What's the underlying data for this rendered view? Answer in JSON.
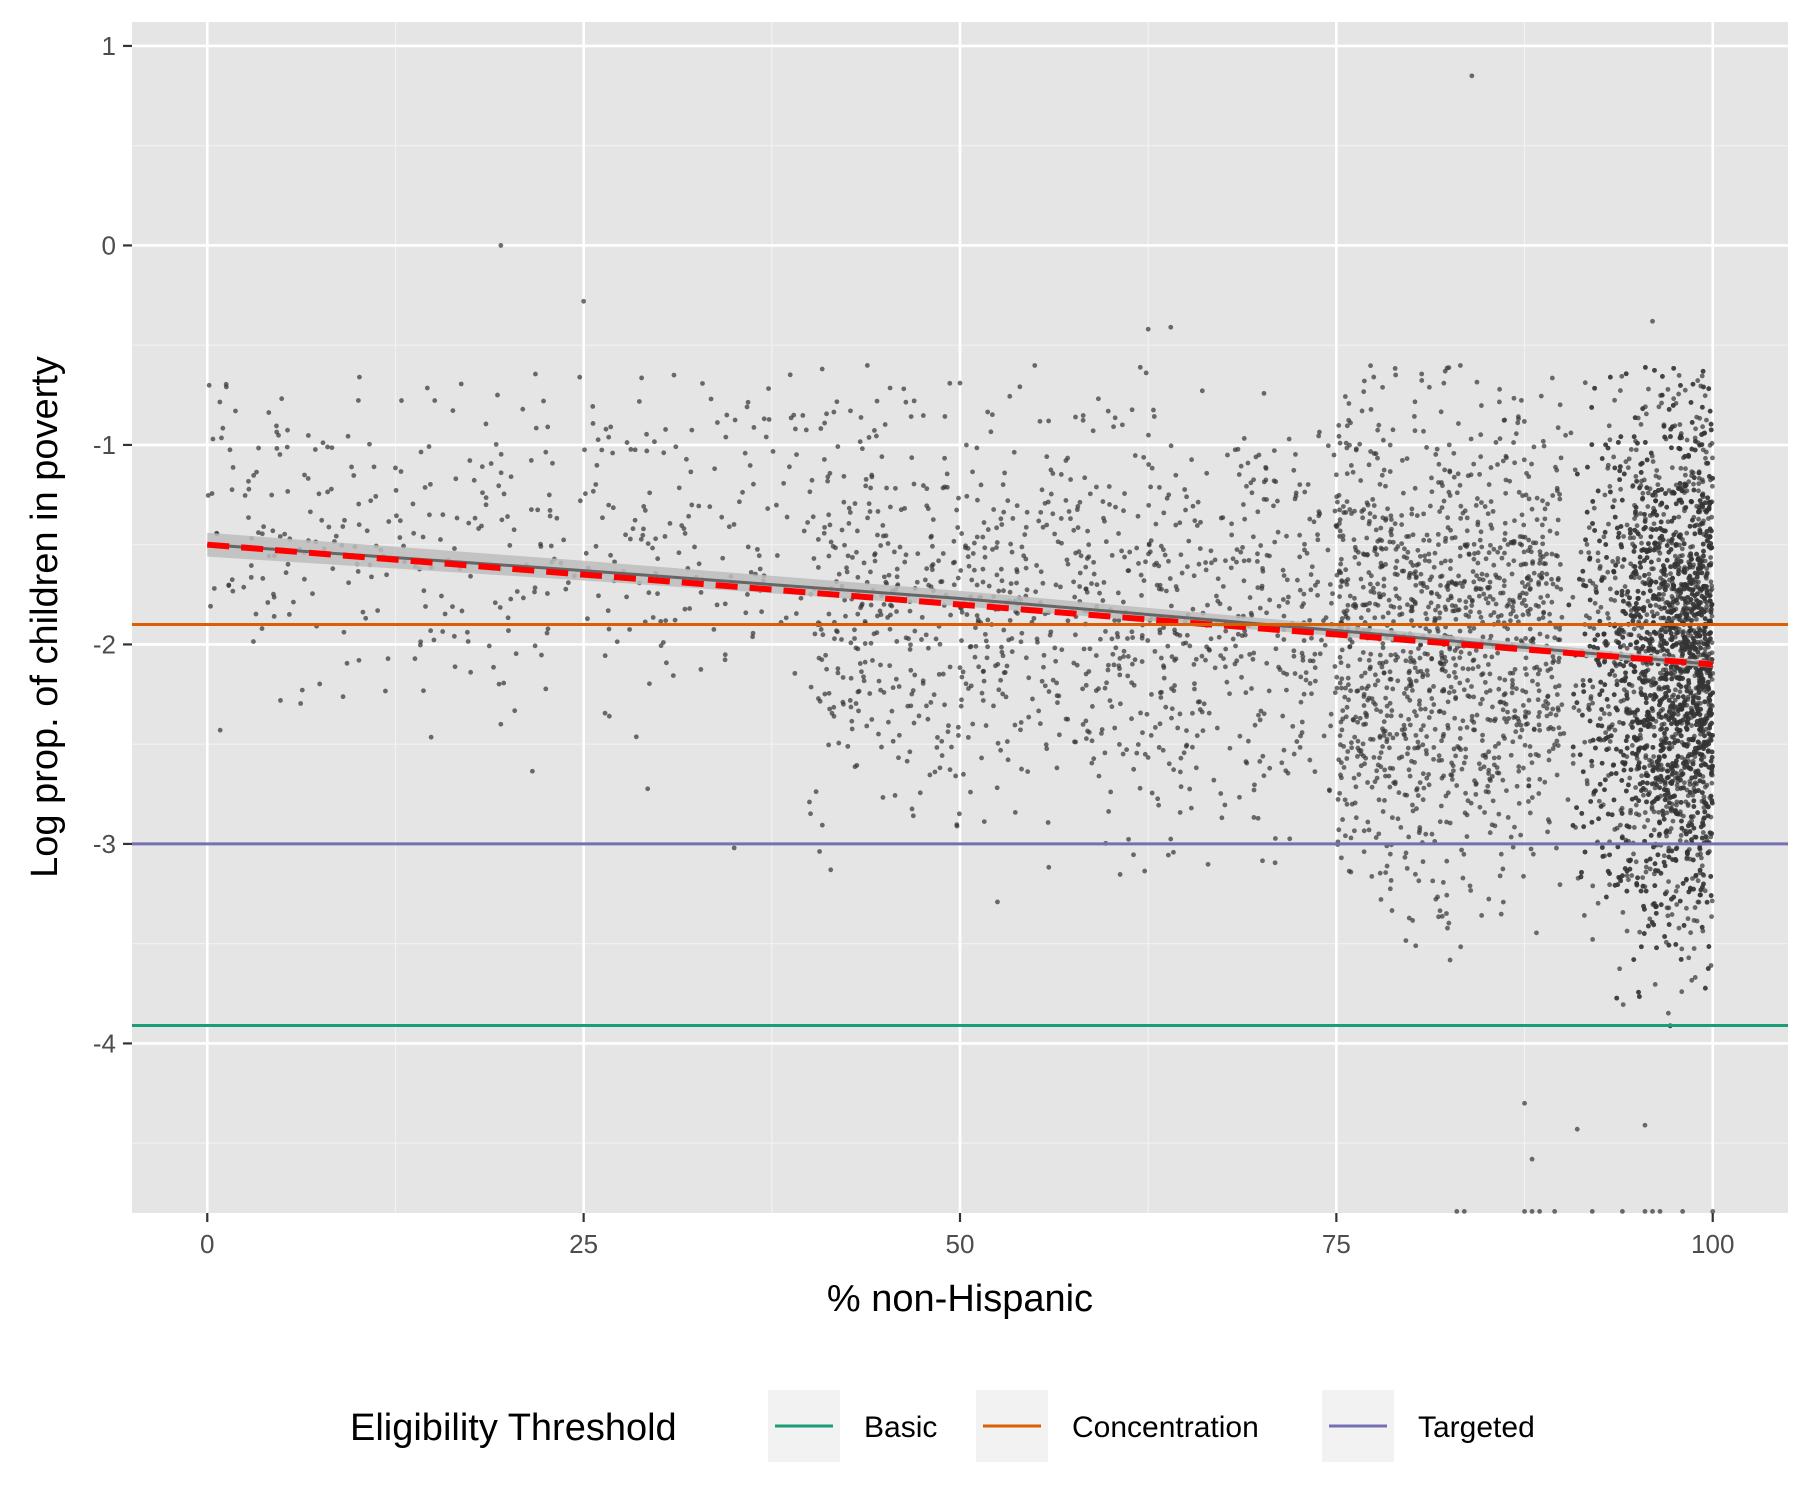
{
  "chart_data": {
    "type": "scatter",
    "title": "",
    "xlabel": "% non-Hispanic",
    "ylabel": "Log prop. of children in poverty",
    "xlim": [
      -5,
      105
    ],
    "ylim": [
      -4.85,
      1.12
    ],
    "x_ticks": [
      0,
      25,
      50,
      75,
      100
    ],
    "x_tick_labels": [
      "0",
      "25",
      "50",
      "75",
      "100"
    ],
    "y_ticks": [
      -4,
      -3,
      -2,
      -1,
      0,
      1
    ],
    "y_tick_labels": [
      "-4",
      "-3",
      "-2",
      "-1",
      "0",
      "1"
    ],
    "grid": true,
    "background": "#E5E5E5",
    "point_color": "#333333",
    "notable_points": [
      {
        "x": 84,
        "y": 0.85
      },
      {
        "x": 19.5,
        "y": 0.0
      },
      {
        "x": 25,
        "y": -0.28
      },
      {
        "x": 62.5,
        "y": -0.42
      },
      {
        "x": 64,
        "y": -0.41
      },
      {
        "x": 96,
        "y": -0.38
      },
      {
        "x": 50,
        "y": -0.69
      },
      {
        "x": 31,
        "y": -0.65
      },
      {
        "x": 88,
        "y": -4.58
      },
      {
        "x": 91,
        "y": -4.43
      },
      {
        "x": 95.5,
        "y": -4.41
      },
      {
        "x": 87.5,
        "y": -4.3
      },
      {
        "x": 35,
        "y": -3.02
      },
      {
        "x": 19.5,
        "y": -2.4
      },
      {
        "x": 40,
        "y": -2.79
      }
    ],
    "point_clusters": [
      {
        "x_range": [
          0,
          40
        ],
        "y_center": -1.45,
        "y_spread": 0.4,
        "count": 420
      },
      {
        "x_range": [
          40,
          75
        ],
        "y_center": -1.85,
        "y_spread": 0.5,
        "count": 1100
      },
      {
        "x_range": [
          75,
          90
        ],
        "y_center": -2.0,
        "y_spread": 0.6,
        "count": 1300
      },
      {
        "x_range": [
          90,
          100
        ],
        "y_center": -2.1,
        "y_spread": 0.65,
        "count": 3200
      }
    ],
    "bottom_clipped_x": [
      83,
      83.5,
      87.5,
      88,
      88.5,
      89.5,
      92,
      94,
      95.5,
      96,
      96.5,
      98,
      100
    ],
    "trend_loess": {
      "x": [
        0,
        25,
        50,
        75,
        100
      ],
      "y": [
        -1.5,
        -1.63,
        -1.77,
        -1.93,
        -2.1
      ],
      "color": "#666666"
    },
    "trend_linear": {
      "x": [
        0,
        100
      ],
      "y": [
        -1.5,
        -2.1
      ],
      "color": "#FF0000",
      "style": "dashed"
    },
    "hlines": [
      {
        "name": "Basic",
        "y": -3.91,
        "color": "#1B9E77"
      },
      {
        "name": "Concentration",
        "y": -1.9,
        "color": "#D95F02"
      },
      {
        "name": "Targeted",
        "y": -3.0,
        "color": "#7570B3"
      }
    ],
    "legend": {
      "title": "Eligibility Threshold",
      "position": "bottom",
      "entries": [
        "Basic",
        "Concentration",
        "Targeted"
      ]
    }
  }
}
